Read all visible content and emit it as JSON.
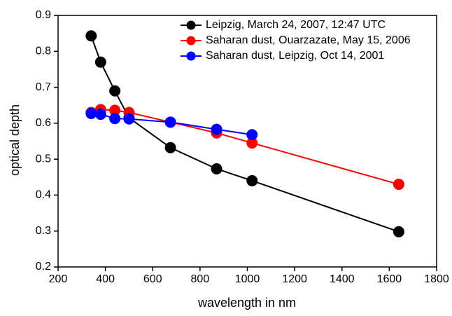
{
  "chart_data": {
    "type": "line",
    "xlabel": "wavelength in nm",
    "ylabel": "optical depth",
    "xlim": [
      200,
      1800
    ],
    "xticks": [
      200,
      400,
      600,
      800,
      1000,
      1200,
      1400,
      1600,
      1800
    ],
    "ylim": [
      0.2,
      0.9
    ],
    "yticks": [
      0.2,
      0.3,
      0.4,
      0.5,
      0.6,
      0.7,
      0.8,
      0.9
    ],
    "legend": "upper-right",
    "series": [
      {
        "name": "Leipzig, March 24, 2007, 12:47 UTC",
        "color": "#000000",
        "x": [
          340,
          380,
          440,
          500,
          675,
          870,
          1020,
          1640
        ],
        "values": [
          0.843,
          0.77,
          0.69,
          0.615,
          0.532,
          0.473,
          0.44,
          0.298
        ]
      },
      {
        "name": "Saharan dust, Ouarzazate, May 15, 2006",
        "color": "#ff0000",
        "x": [
          340,
          380,
          440,
          500,
          675,
          870,
          1020,
          1640
        ],
        "values": [
          0.63,
          0.638,
          0.636,
          0.63,
          0.603,
          0.573,
          0.545,
          0.43
        ]
      },
      {
        "name": "Saharan dust, Leipzig, Oct 14, 2001",
        "color": "#0000ff",
        "x": [
          340,
          380,
          440,
          500,
          675,
          870,
          1020
        ],
        "values": [
          0.627,
          0.625,
          0.613,
          0.612,
          0.603,
          0.583,
          0.568
        ]
      }
    ]
  }
}
